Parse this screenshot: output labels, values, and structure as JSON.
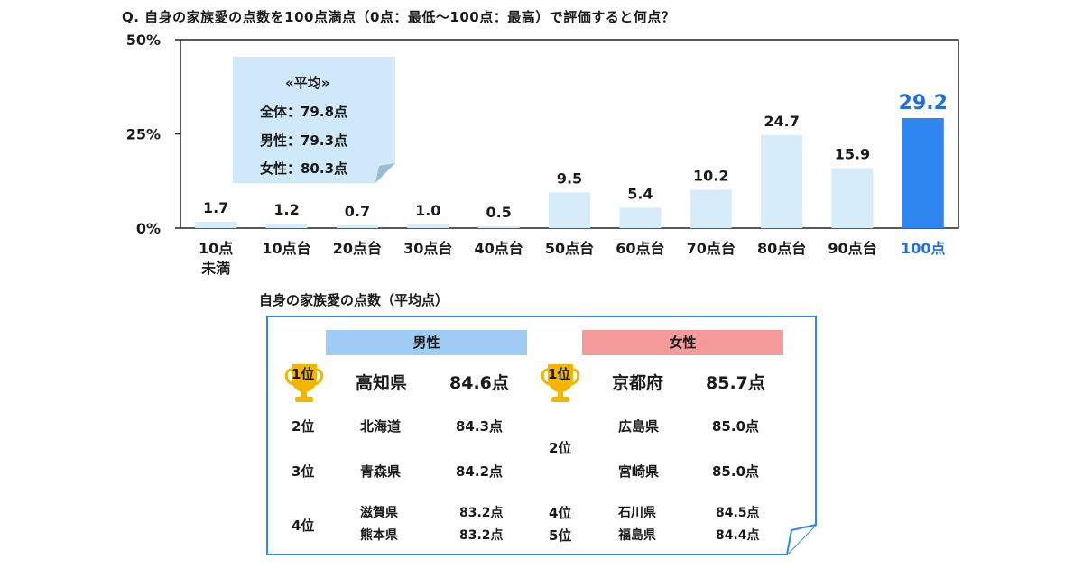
{
  "question": "Q.  自身の家族愛の点数を100点満点（0点：最低～100点：最高）で評価すると何点？",
  "chart_data": {
    "type": "bar",
    "categories": [
      "10点未満",
      "10点台",
      "20点台",
      "30点台",
      "40点台",
      "50点台",
      "60点台",
      "70点台",
      "80点台",
      "90点台",
      "100点"
    ],
    "category_lines": [
      [
        "10点",
        "未満"
      ],
      [
        "10点台"
      ],
      [
        "20点台"
      ],
      [
        "30点台"
      ],
      [
        "40点台"
      ],
      [
        "50点台"
      ],
      [
        "60点台"
      ],
      [
        "70点台"
      ],
      [
        "80点台"
      ],
      [
        "90点台"
      ],
      [
        "100点"
      ]
    ],
    "values": [
      1.7,
      1.2,
      0.7,
      1.0,
      0.5,
      9.5,
      5.4,
      10.2,
      24.7,
      15.9,
      29.2
    ],
    "value_labels": [
      "1.7",
      "1.2",
      "0.7",
      "1.0",
      "0.5",
      "9.5",
      "5.4",
      "10.2",
      "24.7",
      "15.9",
      "29.2"
    ],
    "ylim": [
      0,
      50
    ],
    "yticks": [
      0,
      25,
      50
    ],
    "ytick_labels": [
      "0%",
      "25%",
      "50%"
    ],
    "highlight_index": 10,
    "colors": {
      "bar": "#d6ecfb",
      "highlight": "#2f86f0",
      "highlight_text": "#1f6fe0"
    }
  },
  "average_box": {
    "title": "«平均»",
    "lines": [
      "全体：79.8点",
      "男性：79.3点",
      "女性：80.3点"
    ],
    "fill": "#cfe9fa"
  },
  "ranking": {
    "title": "自身の家族愛の点数（平均点）",
    "male": {
      "header": "男性",
      "rows": [
        {
          "rank": "1位",
          "name": "高知県",
          "score": "84.6点"
        },
        {
          "rank": "2位",
          "name": "北海道",
          "score": "84.3点"
        },
        {
          "rank": "3位",
          "name": "青森県",
          "score": "84.2点"
        },
        {
          "rank": "4位",
          "name": "滋賀県",
          "score": "83.2点"
        },
        {
          "rank": "",
          "name": "熊本県",
          "score": "83.2点"
        }
      ]
    },
    "female": {
      "header": "女性",
      "rows": [
        {
          "rank": "1位",
          "name": "京都府",
          "score": "85.7点"
        },
        {
          "rank": "2位",
          "name": "広島県",
          "score": "85.0点"
        },
        {
          "rank": "",
          "name": "宮崎県",
          "score": "85.0点"
        },
        {
          "rank": "4位",
          "name": "石川県",
          "score": "84.5点"
        },
        {
          "rank": "5位",
          "name": "福島県",
          "score": "84.4点"
        }
      ]
    },
    "colors": {
      "frame": "#2f86f0",
      "male_header": "#9fcdf5",
      "female_header": "#f59a9a",
      "trophy": "#f2b600"
    }
  }
}
